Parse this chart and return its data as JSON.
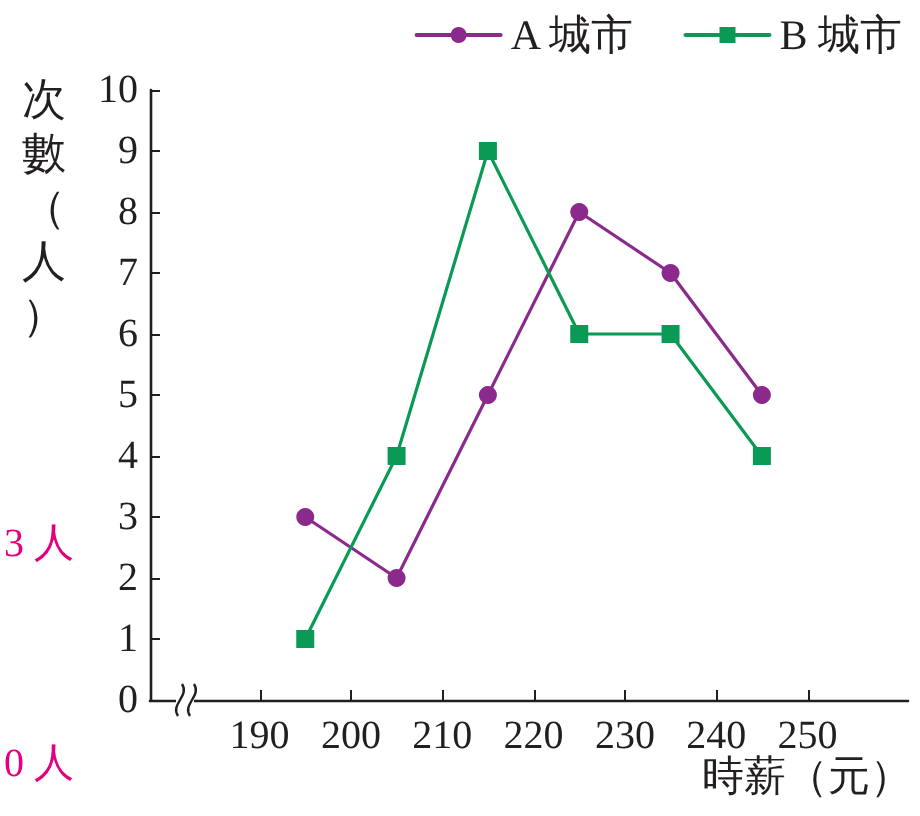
{
  "chart_data": {
    "type": "line",
    "xlabel": "時薪（元）",
    "ylabel": "次數（人）",
    "x": [
      195,
      205,
      215,
      225,
      235,
      245
    ],
    "series": [
      {
        "name": "A 城市",
        "color": "#8b2a8c",
        "marker": "circle",
        "values": [
          3,
          2,
          5,
          8,
          7,
          5
        ]
      },
      {
        "name": "B 城市",
        "color": "#0b9a55",
        "marker": "square",
        "values": [
          1,
          4,
          9,
          6,
          6,
          4
        ]
      }
    ],
    "xlim": [
      178,
      261
    ],
    "xticks": [
      190,
      200,
      210,
      220,
      230,
      240,
      250
    ],
    "ylim": [
      0,
      10
    ],
    "yticks": [
      0,
      1,
      2,
      3,
      4,
      5,
      6,
      7,
      8,
      9,
      10
    ],
    "grid": false,
    "legend": "top right",
    "line_style": "solid",
    "annotations": [
      "3 人",
      "0 人"
    ]
  }
}
